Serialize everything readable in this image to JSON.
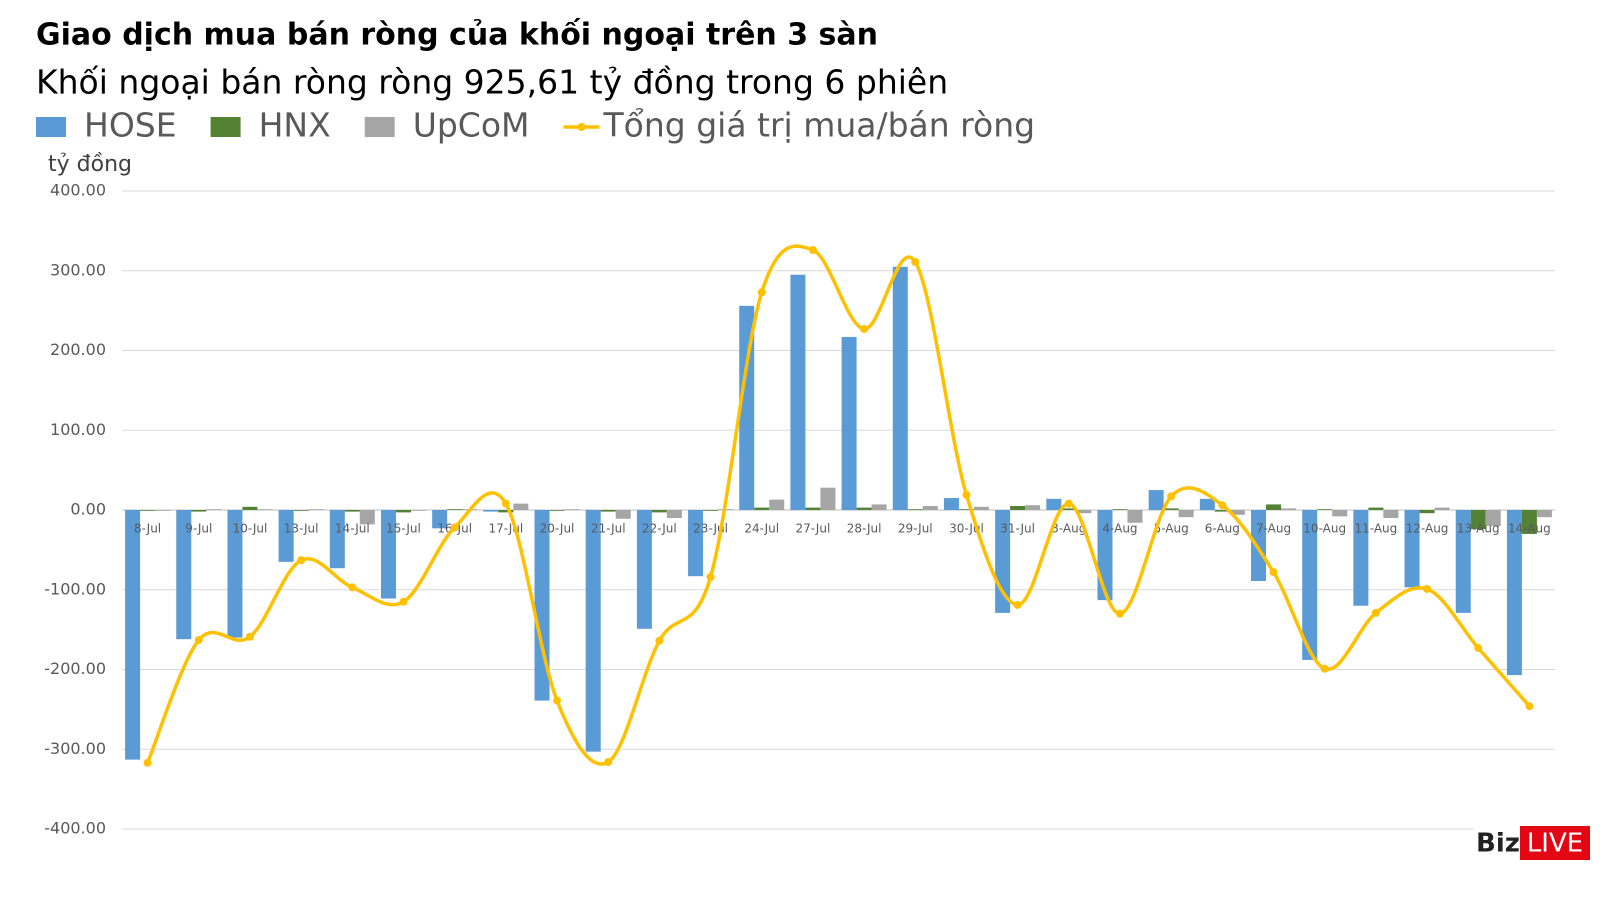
{
  "chart_data": {
    "type": "combo",
    "title": "Giao dịch mua bán ròng của khối ngoại trên 3 sàn",
    "subtitle": "Khối ngoại bán ròng ròng 925,61 tỷ đồng trong 6 phiên",
    "y_label": "tỷ đồng",
    "categories": [
      "8-Jul",
      "9-Jul",
      "10-Jul",
      "13-Jul",
      "14-Jul",
      "15-Jul",
      "16-Jul",
      "17-Jul",
      "20-Jul",
      "21-Jul",
      "22-Jul",
      "23-Jul",
      "24-Jul",
      "27-Jul",
      "28-Jul",
      "29-Jul",
      "30-Jul",
      "31-Jul",
      "3-Aug",
      "4-Aug",
      "5-Aug",
      "6-Aug",
      "7-Aug",
      "10-Aug",
      "11-Aug",
      "12-Aug",
      "13-Aug",
      "14-Aug"
    ],
    "series": [
      {
        "name": "HOSE",
        "type": "bar",
        "color": "#5b9bd5",
        "values": [
          -313,
          -162,
          -160,
          -65,
          -73,
          -111,
          -23,
          -2,
          -239,
          -303,
          -149,
          -83,
          256,
          295,
          217,
          305,
          15,
          -129,
          14,
          -113,
          25,
          14,
          -89,
          -188,
          -120,
          -97,
          -129,
          -207
        ]
      },
      {
        "name": "HNX",
        "type": "bar",
        "color": "#548235",
        "values": [
          -1,
          -2,
          4,
          -1,
          -2,
          -3,
          1,
          -3,
          -1,
          -2,
          -3,
          -1,
          3,
          3,
          3,
          1,
          1,
          5,
          2,
          1,
          2,
          -2,
          7,
          1,
          3,
          -4,
          -24,
          -30
        ]
      },
      {
        "name": "UpCoM",
        "type": "bar",
        "color": "#a5a5a5",
        "values": [
          -1,
          1,
          1,
          1,
          -18,
          -1,
          1,
          8,
          1,
          -11,
          -10,
          1,
          13,
          28,
          7,
          5,
          4,
          6,
          -4,
          -16,
          -9,
          -6,
          2,
          -8,
          -10,
          3,
          -20,
          -9
        ]
      },
      {
        "name": "Tổng giá trị mua/bán ròng",
        "type": "line",
        "color": "#ffc000",
        "values": [
          -317,
          -163,
          -159,
          -63,
          -97,
          -115,
          -22,
          8,
          -239,
          -316,
          -164,
          -84,
          273,
          326,
          227,
          311,
          19,
          -119,
          8,
          -130,
          17,
          6,
          -78,
          -199,
          -129,
          -99,
          -173,
          -246
        ]
      }
    ],
    "ylim": [
      -400,
      400
    ],
    "yticks": [
      {
        "value": -400,
        "label": "-400.00"
      },
      {
        "value": -300,
        "label": "-300.00"
      },
      {
        "value": -200,
        "label": "-200.00"
      },
      {
        "value": -100,
        "label": "-100.00"
      },
      {
        "value": 0,
        "label": "0.00"
      },
      {
        "value": 100,
        "label": "100.00"
      },
      {
        "value": 200,
        "label": "200.00"
      },
      {
        "value": 300,
        "label": "300.00"
      },
      {
        "value": 400,
        "label": "400.00"
      }
    ],
    "grid": true,
    "smooth": true
  },
  "brand": {
    "part1": "Biz",
    "part2": "LIVE"
  }
}
